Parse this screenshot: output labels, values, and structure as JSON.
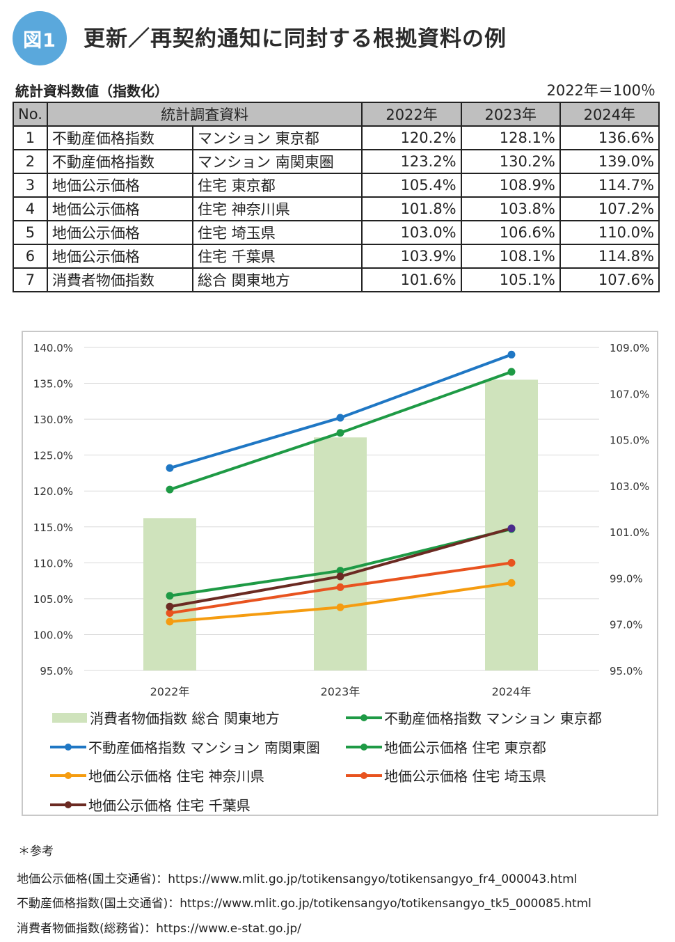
{
  "header": {
    "badge": "図1",
    "title": "更新／再契約通知に同封する根拠資料の例"
  },
  "table": {
    "caption": "統計資料数値（指数化）",
    "base_note": "2022年＝100％",
    "headers": [
      "No.",
      "統計調査資料",
      "2022年",
      "2023年",
      "2024年"
    ],
    "rows": [
      {
        "no": "1",
        "a": "不動産価格指数",
        "b": "マンション 東京都",
        "y2022": "120.2%",
        "y2023": "128.1%",
        "y2024": "136.6%"
      },
      {
        "no": "2",
        "a": "不動産価格指数",
        "b": "マンション 南関東圏",
        "y2022": "123.2%",
        "y2023": "130.2%",
        "y2024": "139.0%"
      },
      {
        "no": "3",
        "a": "地価公示価格",
        "b": "住宅 東京都",
        "y2022": "105.4%",
        "y2023": "108.9%",
        "y2024": "114.7%"
      },
      {
        "no": "4",
        "a": "地価公示価格",
        "b": "住宅 神奈川県",
        "y2022": "101.8%",
        "y2023": "103.8%",
        "y2024": "107.2%"
      },
      {
        "no": "5",
        "a": "地価公示価格",
        "b": "住宅 埼玉県",
        "y2022": "103.0%",
        "y2023": "106.6%",
        "y2024": "110.0%"
      },
      {
        "no": "6",
        "a": "地価公示価格",
        "b": "住宅 千葉県",
        "y2022": "103.9%",
        "y2023": "108.1%",
        "y2024": "114.8%"
      },
      {
        "no": "7",
        "a": "消費者物価指数",
        "b": "総合 関東地方",
        "y2022": "101.6%",
        "y2023": "105.1%",
        "y2024": "107.6%"
      }
    ]
  },
  "chart_data": {
    "type": "bar",
    "categories": [
      "2022年",
      "2023年",
      "2024年"
    ],
    "y_left": {
      "min": 95,
      "max": 140,
      "ticks": [
        "140.0%",
        "135.0%",
        "130.0%",
        "125.0%",
        "120.0%",
        "115.0%",
        "110.0%",
        "105.0%",
        "100.0%",
        "95.0%"
      ]
    },
    "y_right": {
      "min": 95,
      "max": 109,
      "ticks": [
        "109.0%",
        "107.0%",
        "105.0%",
        "103.0%",
        "101.0%",
        "99.0%",
        "97.0%",
        "95.0%"
      ]
    },
    "grid": true,
    "bar_series": {
      "name": "消費者物価指数 総合 関東地方",
      "axis": "right",
      "color": "#cfe3bc",
      "values": [
        101.6,
        105.1,
        107.6
      ]
    },
    "line_series": [
      {
        "name": "不動産価格指数 マンション 東京都",
        "color": "#1e9a45",
        "values": [
          120.2,
          128.1,
          136.6
        ]
      },
      {
        "name": "不動産価格指数 マンション 南関東圏",
        "color": "#1f77c4",
        "values": [
          123.2,
          130.2,
          139.0
        ]
      },
      {
        "name": "地価公示価格 住宅 東京都",
        "color": "#1e9a45",
        "values": [
          105.4,
          108.9,
          114.7
        ]
      },
      {
        "name": "地価公示価格 住宅 神奈川県",
        "color": "#f59c10",
        "values": [
          101.8,
          103.8,
          107.2
        ]
      },
      {
        "name": "地価公示価格 住宅 埼玉県",
        "color": "#e8531f",
        "values": [
          103.0,
          106.6,
          110.0
        ]
      },
      {
        "name": "地価公示価格 住宅 千葉県",
        "color": "#6b2a22",
        "values": [
          103.9,
          108.1,
          114.8
        ],
        "end_marker_color": "#4a2a8c"
      }
    ],
    "legend_position": "bottom"
  },
  "references": {
    "title": "＊参考",
    "lines": [
      "地価公示価格(国土交通省)：https://www.mlit.go.jp/totikensangyo/totikensangyo_fr4_000043.html",
      "不動産価格指数(国土交通省)：https://www.mlit.go.jp/totikensangyo/totikensangyo_tk5_000085.html",
      "消費者物価指数(総務省)：https://www.e-stat.go.jp/"
    ]
  }
}
